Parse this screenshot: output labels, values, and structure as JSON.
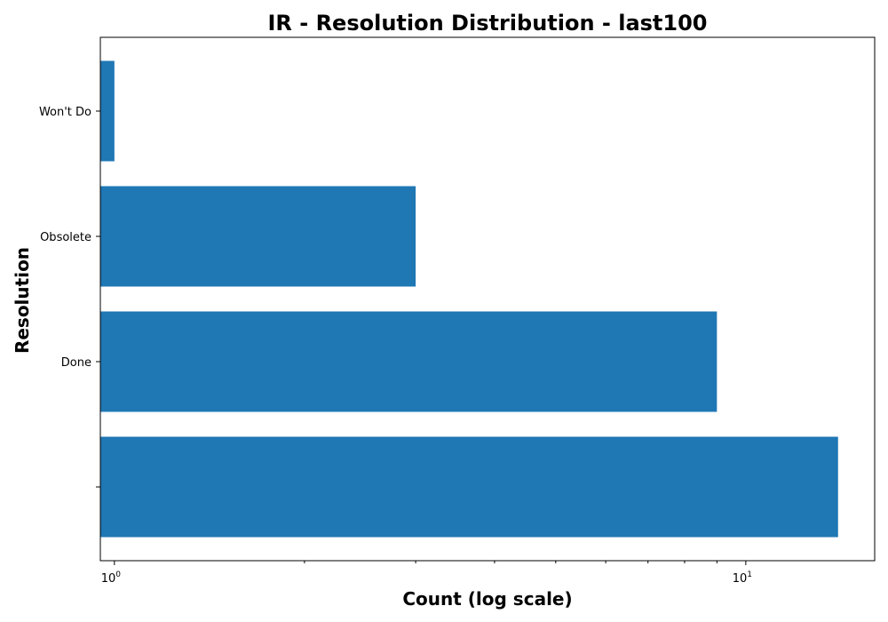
{
  "chart_data": {
    "type": "bar",
    "orientation": "horizontal",
    "title": "IR - Resolution Distribution - last100",
    "xlabel": "Count (log scale)",
    "ylabel": "Resolution",
    "x_scale": "log",
    "xlim": [
      0.95,
      16
    ],
    "categories": [
      "",
      "Done",
      "Obsolete",
      "Won't Do"
    ],
    "values": [
      14,
      9,
      3,
      1
    ],
    "x_ticks": [
      {
        "base": "10",
        "exp": "0",
        "value": 1
      },
      {
        "base": "10",
        "exp": "1",
        "value": 10
      }
    ],
    "bar_color": "#1f77b4",
    "grid": false,
    "legend": "none"
  }
}
